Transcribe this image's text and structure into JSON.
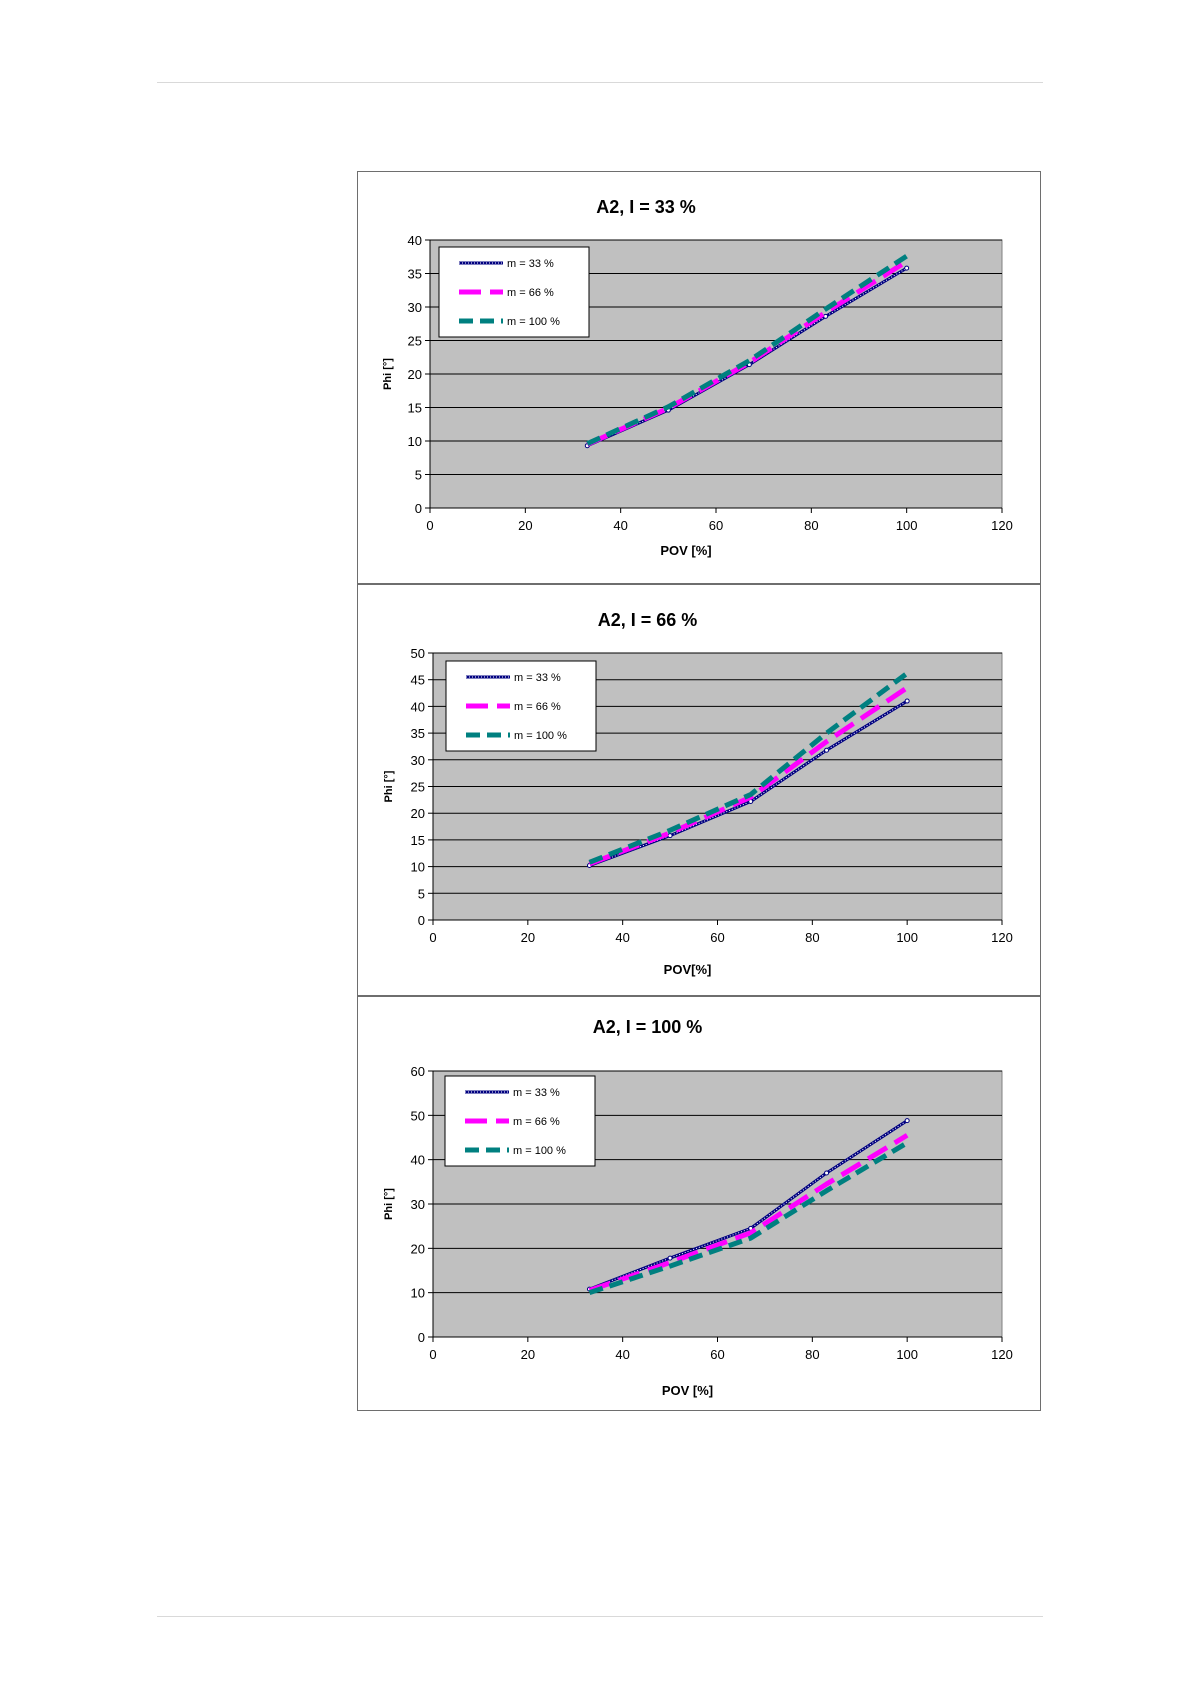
{
  "chart_data": [
    {
      "type": "line",
      "title": "A2,  I = 33 %",
      "xlabel": "POV [%]",
      "ylabel": "Phi [°]",
      "xlim": [
        0,
        120
      ],
      "ylim": [
        0,
        40
      ],
      "xticks": [
        0,
        20,
        40,
        60,
        80,
        100,
        120
      ],
      "yticks": [
        0,
        5,
        10,
        15,
        20,
        25,
        30,
        35,
        40
      ],
      "grid": true,
      "legend_position": "top-left",
      "series": [
        {
          "name": "m = 33 %",
          "color": "#000080",
          "style": "marker-line",
          "x": [
            33,
            50,
            67,
            83,
            100
          ],
          "y": [
            9.3,
            14.6,
            21.4,
            28.6,
            35.8
          ]
        },
        {
          "name": "m = 66 %",
          "color": "#ff00ff",
          "style": "dash-long",
          "x": [
            33,
            50,
            67,
            83,
            100
          ],
          "y": [
            9.5,
            14.9,
            21.7,
            29.2,
            36.8
          ]
        },
        {
          "name": "m = 100 %",
          "color": "#008080",
          "style": "dash",
          "x": [
            33,
            50,
            67,
            83,
            100
          ],
          "y": [
            9.6,
            15.1,
            22.0,
            29.7,
            37.6
          ]
        }
      ]
    },
    {
      "type": "line",
      "title": "A2,  I = 66 %",
      "xlabel": "POV[%]",
      "ylabel": "Phi [°]",
      "xlim": [
        0,
        120
      ],
      "ylim": [
        0,
        50
      ],
      "xticks": [
        0,
        20,
        40,
        60,
        80,
        100,
        120
      ],
      "yticks": [
        0,
        5,
        10,
        15,
        20,
        25,
        30,
        35,
        40,
        45,
        50
      ],
      "grid": true,
      "legend_position": "top-left",
      "series": [
        {
          "name": "m = 33 %",
          "color": "#000080",
          "style": "marker-line",
          "x": [
            33,
            50,
            67,
            83,
            100
          ],
          "y": [
            10.2,
            15.8,
            22.2,
            31.8,
            41.0
          ]
        },
        {
          "name": "m = 66 %",
          "color": "#ff00ff",
          "style": "dash-long",
          "x": [
            33,
            50,
            67,
            83,
            100
          ],
          "y": [
            10.5,
            16.3,
            23.0,
            33.4,
            43.5
          ]
        },
        {
          "name": "m = 100 %",
          "color": "#008080",
          "style": "dash",
          "x": [
            33,
            50,
            67,
            83,
            100
          ],
          "y": [
            10.8,
            16.8,
            23.5,
            35.0,
            46.2
          ]
        }
      ]
    },
    {
      "type": "line",
      "title": "A2,  I = 100 %",
      "xlabel": "POV [%]",
      "ylabel": "Phi [°]",
      "xlim": [
        0,
        120
      ],
      "ylim": [
        0,
        60
      ],
      "xticks": [
        0,
        20,
        40,
        60,
        80,
        100,
        120
      ],
      "yticks": [
        0,
        10,
        20,
        30,
        40,
        50,
        60
      ],
      "grid": true,
      "legend_position": "top-left",
      "series": [
        {
          "name": "m = 33 %",
          "color": "#000080",
          "style": "marker-line",
          "x": [
            33,
            50,
            67,
            83,
            100
          ],
          "y": [
            10.8,
            17.8,
            24.5,
            37.0,
            48.8
          ]
        },
        {
          "name": "m = 66 %",
          "color": "#ff00ff",
          "style": "dash-long",
          "x": [
            33,
            50,
            67,
            83,
            100
          ],
          "y": [
            10.5,
            16.8,
            23.5,
            34.5,
            45.5
          ]
        },
        {
          "name": "m = 100 %",
          "color": "#008080",
          "style": "dash",
          "x": [
            33,
            50,
            67,
            83,
            100
          ],
          "y": [
            10.0,
            16.0,
            22.3,
            33.0,
            43.8
          ]
        }
      ]
    }
  ]
}
